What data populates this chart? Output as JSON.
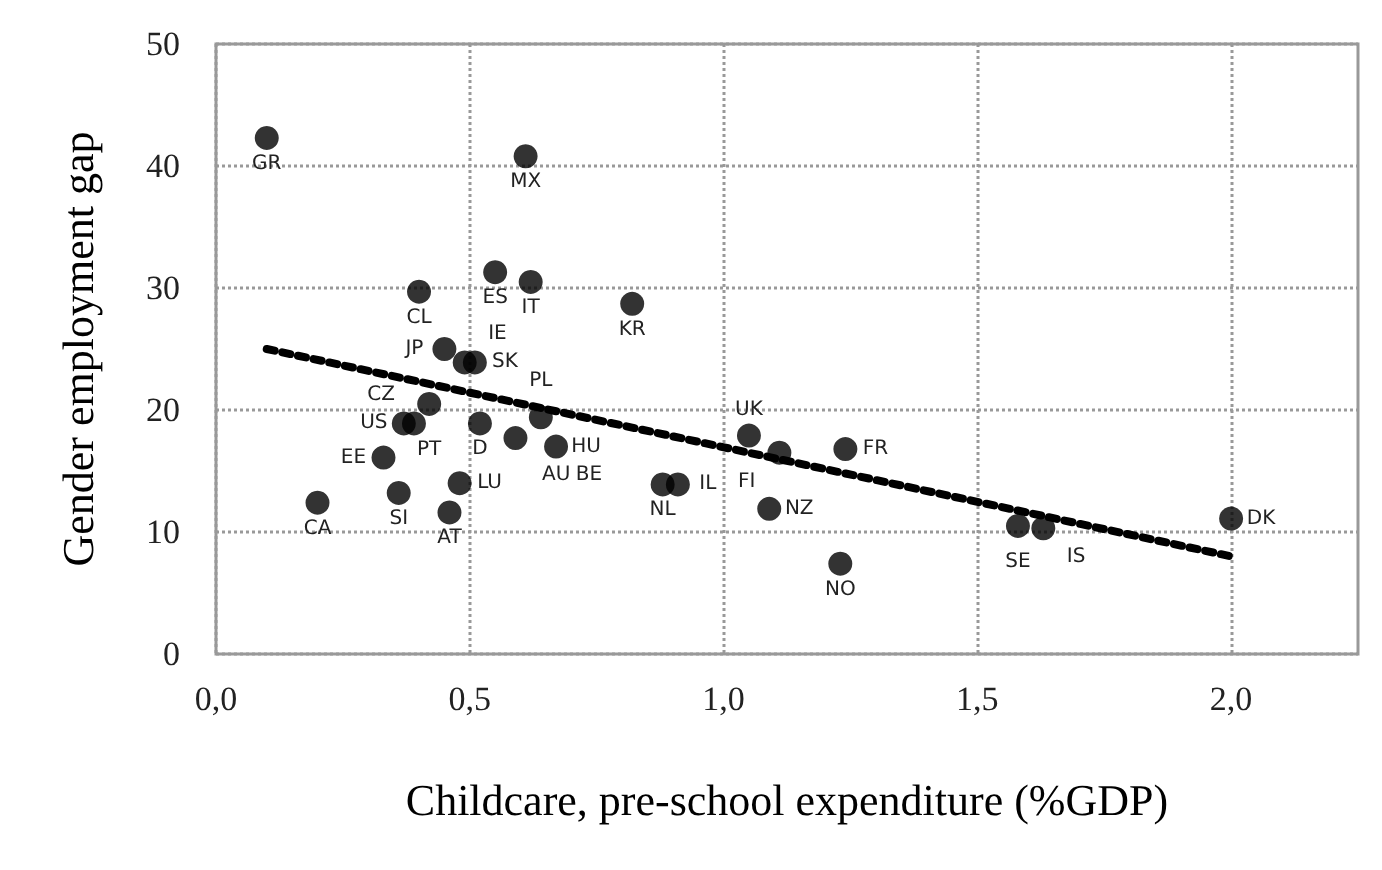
{
  "chart_data": {
    "type": "scatter",
    "xlabel": "Childcare, pre-school expenditure (%GDP)",
    "ylabel": "Gender employment gap",
    "xlim": [
      0,
      2.25
    ],
    "ylim": [
      0,
      50
    ],
    "xticks": [
      {
        "value": 0,
        "label": "0,0"
      },
      {
        "value": 0.5,
        "label": "0,5"
      },
      {
        "value": 1,
        "label": "1,0"
      },
      {
        "value": 1.5,
        "label": "1,5"
      },
      {
        "value": 2,
        "label": "2,0"
      }
    ],
    "yticks": [
      0,
      10,
      20,
      30,
      40,
      50
    ],
    "grid": true,
    "marker": "circle",
    "series": [
      {
        "color": "#000000",
        "x": [
          0.1,
          0.61,
          0.55,
          0.62,
          0.4,
          0.82,
          0.45,
          0.49,
          0.51,
          0.42,
          0.37,
          0.39,
          0.52,
          0.64,
          0.59,
          0.67,
          0.33,
          0.48,
          0.36,
          0.2,
          0.46,
          1.05,
          1.11,
          1.24,
          0.88,
          0.91,
          1.09,
          1.23,
          1.58,
          1.63,
          2.0
        ],
        "values": [
          42.3,
          40.8,
          31.3,
          30.5,
          29.7,
          28.7,
          25,
          23.9,
          23.9,
          20.5,
          18.9,
          18.9,
          18.9,
          19.4,
          17.7,
          17,
          16.1,
          14,
          13.2,
          12.4,
          11.6,
          17.9,
          16.5,
          16.8,
          13.9,
          13.9,
          11.9,
          7.4,
          10.5,
          10.3,
          11.1
        ]
      },
      {
        "type": "line",
        "line_style": "dotted",
        "marker": "none",
        "color": "#000000",
        "x": [
          0.1,
          2.0
        ],
        "values": [
          25,
          8
        ]
      }
    ],
    "annotations": [
      {
        "text": "GR",
        "x": 0.1,
        "y": 42.3
      },
      {
        "text": "MX",
        "x": 0.61,
        "y": 40.8
      },
      {
        "text": "CL",
        "x": 0.4,
        "y": 29.7
      },
      {
        "text": "IE",
        "x": 0.49,
        "y": 23.9
      },
      {
        "text": "ES",
        "x": 0.55,
        "y": 31.3
      },
      {
        "text": "IT",
        "x": 0.62,
        "y": 30.5
      },
      {
        "text": "JP",
        "x": 0.45,
        "y": 25
      },
      {
        "text": "PT",
        "x": 0.42,
        "y": 20.5
      },
      {
        "text": "SK",
        "x": 0.51,
        "y": 23.9
      },
      {
        "text": "PL",
        "x": 0.64,
        "y": 19.4
      },
      {
        "text": "US",
        "x": 0.37,
        "y": 18.9
      },
      {
        "text": "D",
        "x": 0.52,
        "y": 18.9
      },
      {
        "text": "EE",
        "x": 0.33,
        "y": 16.1
      },
      {
        "text": "CZ",
        "x": 0.39,
        "y": 18.9
      },
      {
        "text": "LU",
        "x": 0.48,
        "y": 14
      },
      {
        "text": "AU",
        "x": 0.59,
        "y": 17.7
      },
      {
        "text": "HU",
        "x": 0.67,
        "y": 17
      },
      {
        "text": "BE",
        "x": 0.67,
        "y": 17
      },
      {
        "text": "NL",
        "x": 0.88,
        "y": 13.9
      },
      {
        "text": "IL",
        "x": 0.91,
        "y": 13.9
      },
      {
        "text": "CA",
        "x": 0.2,
        "y": 12.4
      },
      {
        "text": "SI",
        "x": 0.36,
        "y": 13.2
      },
      {
        "text": "AT",
        "x": 0.46,
        "y": 11.6
      },
      {
        "text": "KR",
        "x": 0.82,
        "y": 28.7
      },
      {
        "text": "UK",
        "x": 1.05,
        "y": 17.9
      },
      {
        "text": "NZ",
        "x": 1.09,
        "y": 11.9
      },
      {
        "text": "FR",
        "x": 1.24,
        "y": 16.8
      },
      {
        "text": "FI",
        "x": 1.11,
        "y": 16.5
      },
      {
        "text": "NO",
        "x": 1.23,
        "y": 7.4
      },
      {
        "text": "SE",
        "x": 1.58,
        "y": 10.5
      },
      {
        "text": "IS",
        "x": 1.63,
        "y": 10.3
      },
      {
        "text": "DK",
        "x": 2.0,
        "y": 11.1
      }
    ]
  }
}
